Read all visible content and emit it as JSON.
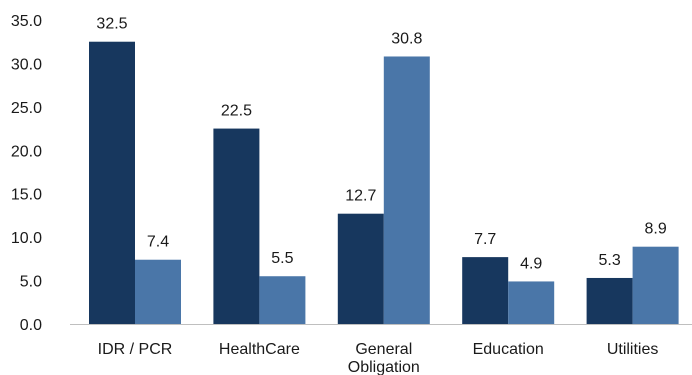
{
  "chart_data": {
    "type": "bar",
    "title": "",
    "xlabel": "",
    "ylabel": "",
    "ylim": [
      0,
      35
    ],
    "yticks": [
      0,
      5,
      10,
      15,
      20,
      25,
      30,
      35
    ],
    "ytick_labels": [
      "0.0",
      "5.0",
      "10.0",
      "15.0",
      "20.0",
      "25.0",
      "30.0",
      "35.0"
    ],
    "grid": false,
    "legend": "none",
    "categories": [
      [
        "IDR / PCR"
      ],
      [
        "HealthCare"
      ],
      [
        "General",
        "Obligation"
      ],
      [
        "Education"
      ],
      [
        "Utilities"
      ]
    ],
    "series": [
      {
        "color": "#17375e",
        "values": [
          32.5,
          22.5,
          12.7,
          7.7,
          5.3
        ],
        "labels": [
          "32.5",
          "22.5",
          "12.7",
          "7.7",
          "5.3"
        ]
      },
      {
        "color": "#4a76a8",
        "values": [
          7.4,
          5.5,
          30.8,
          4.9,
          8.9
        ],
        "labels": [
          "7.4",
          "5.5",
          "30.8",
          "4.9",
          "8.9"
        ]
      }
    ]
  }
}
